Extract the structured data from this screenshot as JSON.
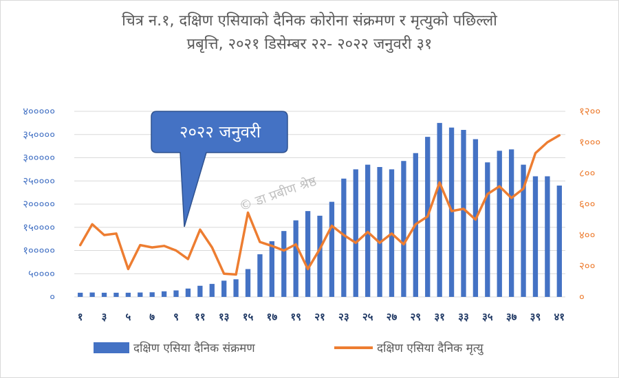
{
  "chart_data": {
    "type": "bar+line",
    "title_line1": "चित्र न.१, दक्षिण एसियाको  दैनिक कोरोना संक्रमण र मृत्युको पछिल्लो",
    "title_line2": "प्रबृत्ति, २०२१ डिसेम्बर २२- २०२२ जनुवरी ३१",
    "x": [
      1,
      2,
      3,
      4,
      5,
      6,
      7,
      8,
      9,
      10,
      11,
      12,
      13,
      14,
      15,
      16,
      17,
      18,
      19,
      20,
      21,
      22,
      23,
      24,
      25,
      26,
      27,
      28,
      29,
      30,
      31,
      32,
      33,
      34,
      35,
      36,
      37,
      38,
      39,
      40,
      41
    ],
    "x_tick_labels": [
      "१",
      "३",
      "५",
      "७",
      "९",
      "११",
      "१३",
      "१५",
      "१७",
      "१९",
      "२१",
      "२३",
      "२५",
      "२७",
      "२९",
      "३१",
      "३३",
      "३५",
      "३७",
      "३९",
      "४१"
    ],
    "y_left_ticks": [
      "०",
      "५००००",
      "१०००००",
      "१५००००",
      "२०००००",
      "२५००००",
      "३०००००",
      "३५००००",
      "४०००००"
    ],
    "y_left_range": [
      0,
      400000
    ],
    "y_right_ticks": [
      "०",
      "२००",
      "४००",
      "६००",
      "८००",
      "१०००",
      "१२००"
    ],
    "y_right_range": [
      0,
      1200
    ],
    "grid": "horizontal",
    "legend_position": "bottom",
    "series": [
      {
        "name": "दक्षिण एसिया दैनिक संक्रमण",
        "kind": "bar",
        "axis": "left",
        "color": "#4472c4",
        "values": [
          9000,
          9500,
          9000,
          9000,
          9000,
          9500,
          10000,
          12000,
          14000,
          18000,
          24000,
          28000,
          35000,
          38000,
          60000,
          92000,
          120000,
          142000,
          165000,
          185000,
          175000,
          205000,
          255000,
          275000,
          285000,
          280000,
          275000,
          293000,
          310000,
          345000,
          375000,
          365000,
          360000,
          340000,
          290000,
          315000,
          318000,
          285000,
          260000,
          260000,
          240000
        ]
      },
      {
        "name": "दक्षिण एसिया  दैनिक मृत्यु",
        "kind": "line",
        "axis": "right",
        "color": "#ed7d31",
        "values": [
          335,
          470,
          400,
          410,
          180,
          335,
          320,
          330,
          300,
          245,
          435,
          320,
          150,
          145,
          545,
          355,
          330,
          300,
          340,
          180,
          310,
          460,
          400,
          350,
          420,
          350,
          410,
          340,
          470,
          520,
          740,
          555,
          570,
          500,
          665,
          715,
          640,
          700,
          930,
          1000,
          1045
        ]
      }
    ],
    "annotations": [
      {
        "text": "२०२२ जनुवरी",
        "kind": "callout",
        "points_to_x": 11
      },
      {
        "text": "© डा  प्रबीण श्रेष्ठ",
        "kind": "watermark"
      }
    ]
  }
}
